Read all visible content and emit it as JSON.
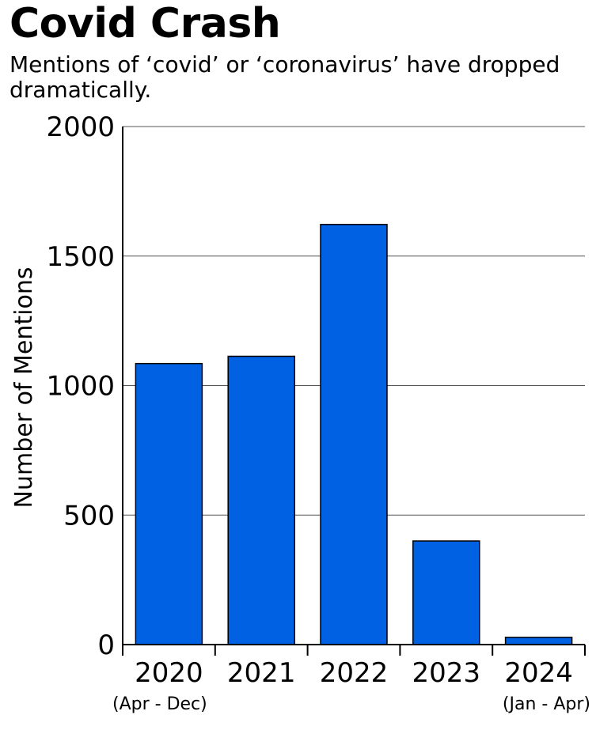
{
  "chart_data": {
    "type": "bar",
    "title": "Covid Crash",
    "subtitle": "Mentions of ‘covid’ or ‘coronavirus’ have dropped dramatically.",
    "ylabel": "Number of Mentions",
    "xlabel": "",
    "categories": [
      "2020",
      "2021",
      "2022",
      "2023",
      "2024"
    ],
    "category_sublabels": [
      "(Apr - Dec)",
      "",
      "",
      "",
      "(Jan - Apr)"
    ],
    "values": [
      1085,
      1113,
      1622,
      400,
      28
    ],
    "ylim": [
      0,
      2000
    ],
    "yticks": [
      0,
      500,
      1000,
      1500,
      2000
    ],
    "grid": true,
    "bar_color": "#0062e3"
  }
}
